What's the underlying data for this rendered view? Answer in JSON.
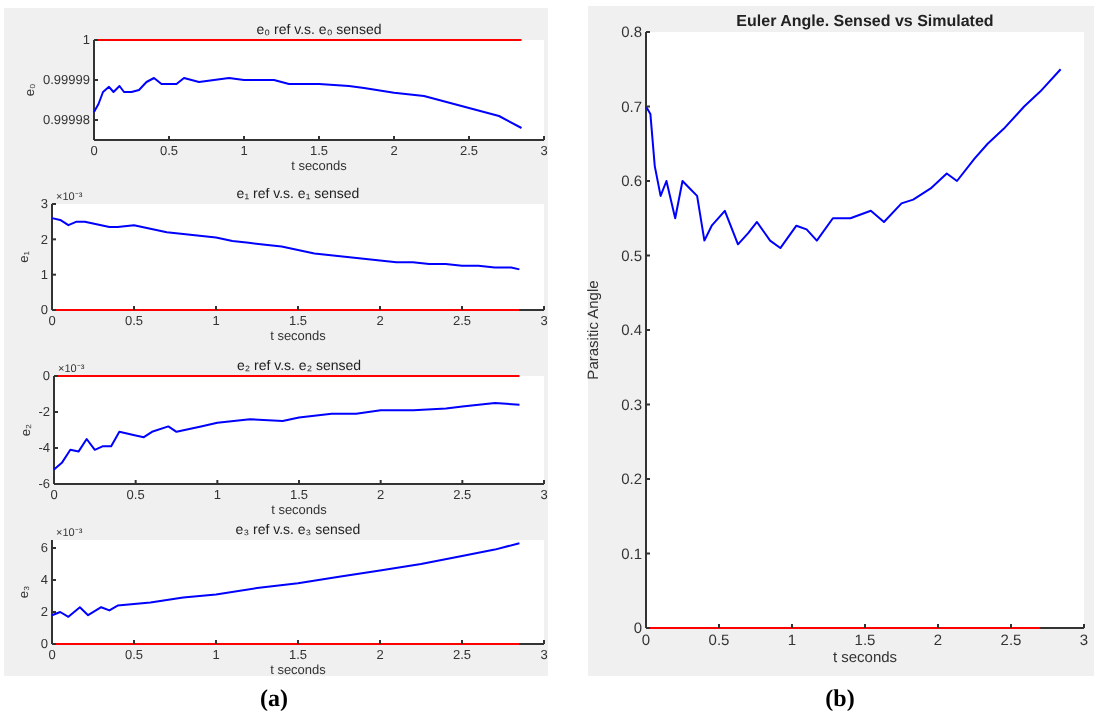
{
  "chart_data": [
    {
      "type": "line",
      "title": "e₀ ref v.s. e₀ sensed",
      "xlabel": "t seconds",
      "ylabel": "e₀",
      "xlim": [
        0,
        3
      ],
      "xticks": [
        0,
        0.5,
        1,
        1.5,
        2,
        2.5,
        3
      ],
      "ylim": [
        0.999975,
        1
      ],
      "yticks": [
        0.99998,
        0.99999,
        1
      ],
      "series": [
        {
          "color": "#ff0000",
          "x": [
            0,
            2.85
          ],
          "values": [
            1,
            1
          ]
        },
        {
          "color": "#0000ff",
          "x": [
            0,
            0.03,
            0.06,
            0.1,
            0.13,
            0.17,
            0.2,
            0.25,
            0.3,
            0.35,
            0.4,
            0.45,
            0.5,
            0.55,
            0.6,
            0.7,
            0.8,
            0.9,
            1.0,
            1.1,
            1.2,
            1.3,
            1.5,
            1.7,
            1.8,
            2.0,
            2.2,
            2.4,
            2.5,
            2.7,
            2.85
          ],
          "values": [
            0.999982,
            0.999984,
            0.999987,
            0.9999883,
            0.999987,
            0.9999885,
            0.999987,
            0.999987,
            0.9999875,
            0.9999895,
            0.9999905,
            0.999989,
            0.999989,
            0.999989,
            0.9999905,
            0.9999895,
            0.99999,
            0.9999905,
            0.99999,
            0.99999,
            0.99999,
            0.999989,
            0.999989,
            0.9999885,
            0.999988,
            0.9999868,
            0.999986,
            0.999984,
            0.999983,
            0.999981,
            0.999978
          ]
        }
      ]
    },
    {
      "type": "line",
      "title": "e₁ ref v.s. e₁ sensed",
      "xlabel": "t seconds",
      "ylabel": "e₁",
      "annotations": [
        "×10⁻³"
      ],
      "xlim": [
        0,
        3
      ],
      "xticks": [
        0,
        0.5,
        1,
        1.5,
        2,
        2.5,
        3
      ],
      "ylim": [
        0,
        3
      ],
      "yticks": [
        0,
        1,
        2,
        3
      ],
      "series": [
        {
          "color": "#ff0000",
          "x": [
            0,
            2.85
          ],
          "values": [
            0,
            0
          ]
        },
        {
          "color": "#0000ff",
          "x": [
            0,
            0.05,
            0.1,
            0.15,
            0.2,
            0.25,
            0.3,
            0.35,
            0.4,
            0.5,
            0.6,
            0.7,
            0.8,
            0.9,
            1.0,
            1.1,
            1.2,
            1.3,
            1.4,
            1.5,
            1.6,
            1.7,
            1.8,
            1.9,
            2.0,
            2.1,
            2.2,
            2.3,
            2.4,
            2.5,
            2.6,
            2.7,
            2.8,
            2.85
          ],
          "values": [
            2.6,
            2.55,
            2.4,
            2.5,
            2.5,
            2.45,
            2.4,
            2.35,
            2.35,
            2.4,
            2.3,
            2.2,
            2.15,
            2.1,
            2.05,
            1.95,
            1.9,
            1.85,
            1.8,
            1.7,
            1.6,
            1.55,
            1.5,
            1.45,
            1.4,
            1.35,
            1.35,
            1.3,
            1.3,
            1.25,
            1.25,
            1.2,
            1.2,
            1.15
          ]
        }
      ]
    },
    {
      "type": "line",
      "title": "e₂ ref v.s. e₂ sensed",
      "xlabel": "t seconds",
      "ylabel": "e₂",
      "annotations": [
        "×10⁻³"
      ],
      "xlim": [
        0,
        3
      ],
      "xticks": [
        0,
        0.5,
        1,
        1.5,
        2,
        2.5,
        3
      ],
      "ylim": [
        -6,
        0
      ],
      "yticks": [
        -6,
        -4,
        -2,
        0
      ],
      "series": [
        {
          "color": "#ff0000",
          "x": [
            0,
            2.85
          ],
          "values": [
            0,
            0
          ]
        },
        {
          "color": "#0000ff",
          "x": [
            0,
            0.05,
            0.1,
            0.15,
            0.2,
            0.25,
            0.3,
            0.35,
            0.4,
            0.5,
            0.55,
            0.6,
            0.7,
            0.75,
            0.8,
            0.9,
            1.0,
            1.2,
            1.4,
            1.5,
            1.7,
            1.85,
            2.0,
            2.2,
            2.4,
            2.5,
            2.7,
            2.85
          ],
          "values": [
            -5.2,
            -4.8,
            -4.1,
            -4.2,
            -3.5,
            -4.1,
            -3.9,
            -3.9,
            -3.1,
            -3.3,
            -3.4,
            -3.1,
            -2.8,
            -3.1,
            -3.0,
            -2.8,
            -2.6,
            -2.4,
            -2.5,
            -2.3,
            -2.1,
            -2.1,
            -1.9,
            -1.9,
            -1.8,
            -1.7,
            -1.5,
            -1.6
          ]
        }
      ]
    },
    {
      "type": "line",
      "title": "e₃ ref v.s. e₃ sensed",
      "xlabel": "t seconds",
      "ylabel": "e₃",
      "annotations": [
        "×10⁻³",
        "(a)"
      ],
      "xlim": [
        0,
        3
      ],
      "xticks": [
        0,
        0.5,
        1,
        1.5,
        2,
        2.5,
        3
      ],
      "ylim": [
        0,
        6.5
      ],
      "yticks": [
        0,
        2,
        4,
        6
      ],
      "series": [
        {
          "color": "#ff0000",
          "x": [
            0,
            2.85
          ],
          "values": [
            0,
            0
          ]
        },
        {
          "color": "#0000ff",
          "x": [
            0,
            0.05,
            0.1,
            0.17,
            0.22,
            0.3,
            0.35,
            0.4,
            0.6,
            0.8,
            1.0,
            1.25,
            1.5,
            1.75,
            2.0,
            2.25,
            2.5,
            2.7,
            2.85
          ],
          "values": [
            1.8,
            2.0,
            1.7,
            2.3,
            1.8,
            2.3,
            2.1,
            2.4,
            2.6,
            2.9,
            3.1,
            3.5,
            3.8,
            4.2,
            4.6,
            5.0,
            5.5,
            5.9,
            6.3
          ]
        }
      ]
    },
    {
      "type": "line",
      "title": "Euler Angle. Sensed vs Simulated",
      "xlabel": "t seconds",
      "ylabel": "Parasitic Angle",
      "annotations": [
        "(b)"
      ],
      "xlim": [
        0,
        3
      ],
      "xticks": [
        0,
        0.5,
        1,
        1.5,
        2,
        2.5,
        3
      ],
      "ylim": [
        0,
        0.8
      ],
      "yticks": [
        0,
        0.1,
        0.2,
        0.3,
        0.4,
        0.5,
        0.6,
        0.7,
        0.8
      ],
      "series": [
        {
          "color": "#ff0000",
          "x": [
            0,
            2.7
          ],
          "values": [
            0,
            0
          ]
        },
        {
          "color": "#0000ff",
          "x": [
            0,
            0.03,
            0.06,
            0.1,
            0.14,
            0.2,
            0.25,
            0.3,
            0.35,
            0.4,
            0.45,
            0.54,
            0.63,
            0.7,
            0.76,
            0.85,
            0.92,
            1.03,
            1.1,
            1.17,
            1.28,
            1.4,
            1.54,
            1.63,
            1.75,
            1.83,
            1.95,
            2.06,
            2.13,
            2.25,
            2.34,
            2.45,
            2.59,
            2.7,
            2.84
          ],
          "values": [
            0.7,
            0.69,
            0.62,
            0.58,
            0.6,
            0.55,
            0.6,
            0.59,
            0.58,
            0.52,
            0.54,
            0.56,
            0.515,
            0.53,
            0.545,
            0.52,
            0.51,
            0.54,
            0.535,
            0.52,
            0.55,
            0.55,
            0.56,
            0.545,
            0.57,
            0.575,
            0.59,
            0.61,
            0.6,
            0.63,
            0.65,
            0.67,
            0.7,
            0.72,
            0.75
          ]
        }
      ]
    }
  ]
}
